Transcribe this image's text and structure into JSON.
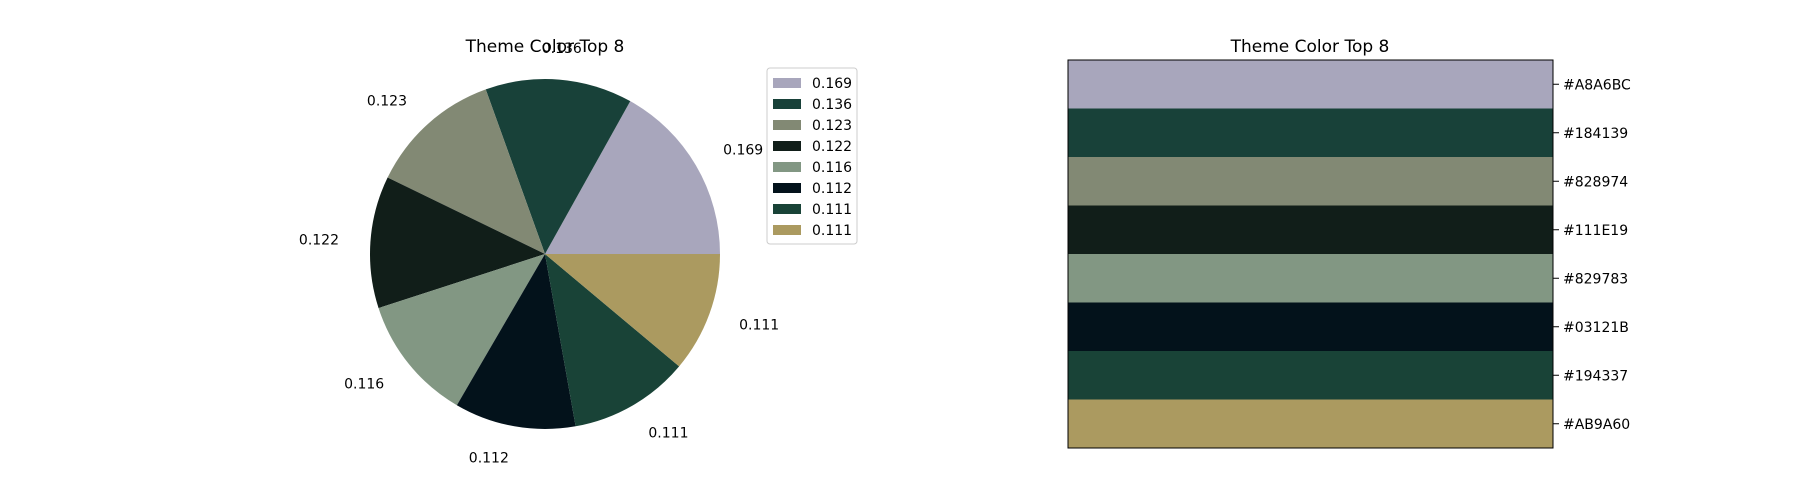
{
  "chart_data": [
    {
      "type": "pie",
      "title": "Theme Color Top 8",
      "values": [
        0.169,
        0.136,
        0.123,
        0.122,
        0.116,
        0.112,
        0.111,
        0.111
      ],
      "labels": [
        "0.169",
        "0.136",
        "0.123",
        "0.122",
        "0.116",
        "0.112",
        "0.111",
        "0.111"
      ],
      "colors": [
        "#A8A6BC",
        "#184139",
        "#828974",
        "#111E19",
        "#829783",
        "#03121B",
        "#194337",
        "#AB9A60"
      ],
      "legend": {
        "position": "right",
        "entries": [
          "0.169",
          "0.136",
          "0.123",
          "0.122",
          "0.116",
          "0.112",
          "0.111",
          "0.111"
        ]
      }
    },
    {
      "type": "bar",
      "title": "Theme Color Top 8",
      "categories": [
        "#A8A6BC",
        "#184139",
        "#828974",
        "#111E19",
        "#829783",
        "#03121B",
        "#194337",
        "#AB9A60"
      ],
      "colors": [
        "#A8A6BC",
        "#184139",
        "#828974",
        "#111E19",
        "#829783",
        "#03121B",
        "#194337",
        "#AB9A60"
      ],
      "tick_labels": [
        "#A8A6BC",
        "#184139",
        "#828974",
        "#111E19",
        "#829783",
        "#03121B",
        "#194337",
        "#AB9A60"
      ]
    }
  ]
}
